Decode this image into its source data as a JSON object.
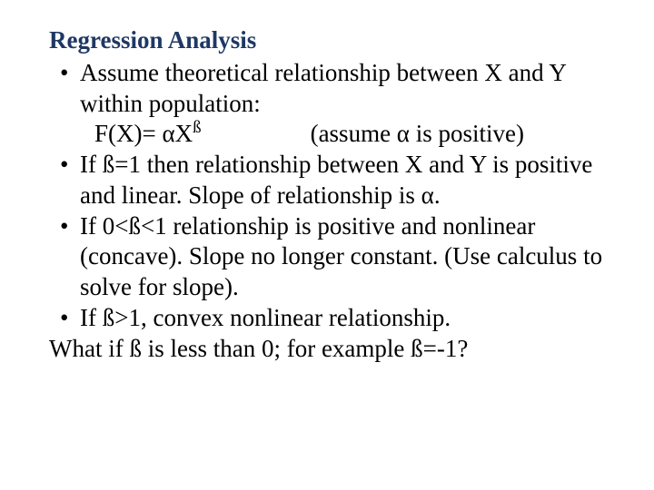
{
  "colors": {
    "title": "#1f3864",
    "body": "#000000",
    "background": "#ffffff"
  },
  "typography": {
    "font_family": "Times New Roman",
    "title_fontsize_pt": 20,
    "body_fontsize_pt": 20,
    "title_weight": "bold",
    "body_weight": "normal"
  },
  "title": "Regression Analysis",
  "bullets": [
    "Assume theoretical relationship between X and Y within population:",
    "If ß=1 then relationship between X and Y is positive and linear.  Slope of relationship is α.",
    "If 0<ß<1 relationship is positive and nonlinear (concave). Slope no longer constant.  (Use calculus to solve for slope).",
    "If ß>1, convex nonlinear relationship."
  ],
  "formula": {
    "lhs": "F(X)= αX",
    "exp": "ß",
    "note": "(assume α is positive)"
  },
  "closing": "What if ß is less than 0; for example ß=-1?"
}
